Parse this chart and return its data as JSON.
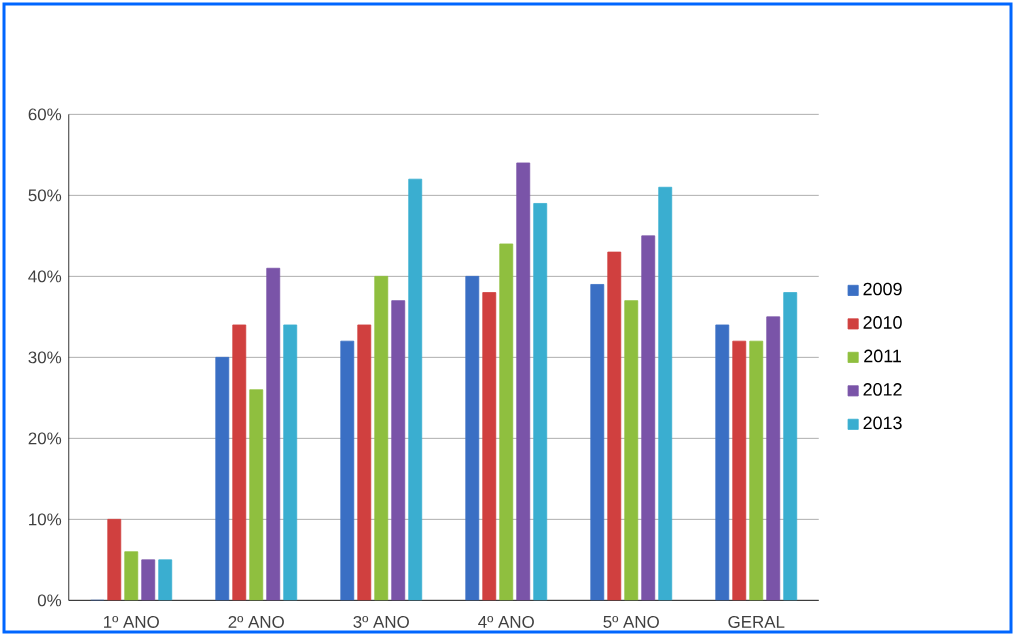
{
  "chart_data": {
    "type": "bar",
    "categories": [
      "1º ANO",
      "2º ANO",
      "3º ANO",
      "4º ANO",
      "5º ANO",
      "GERAL"
    ],
    "series": [
      {
        "name": "2009",
        "color": "#3a6fc4",
        "values": [
          0,
          30,
          32,
          40,
          39,
          34
        ]
      },
      {
        "name": "2010",
        "color": "#d0403f",
        "values": [
          10,
          34,
          34,
          38,
          43,
          32
        ]
      },
      {
        "name": "2011",
        "color": "#8fbf3f",
        "values": [
          6,
          26,
          40,
          44,
          37,
          32
        ]
      },
      {
        "name": "2012",
        "color": "#7a54a8",
        "values": [
          5,
          41,
          37,
          54,
          45,
          35
        ]
      },
      {
        "name": "2013",
        "color": "#3aaed0",
        "values": [
          5,
          34,
          52,
          49,
          51,
          38
        ]
      }
    ],
    "ylim": [
      0,
      60
    ],
    "yticks": [
      {
        "value": 0,
        "label": "0%"
      },
      {
        "value": 10,
        "label": "10%"
      },
      {
        "value": 20,
        "label": "20%"
      },
      {
        "value": 30,
        "label": "30%"
      },
      {
        "value": 40,
        "label": "40%"
      },
      {
        "value": 50,
        "label": "50%"
      },
      {
        "value": 60,
        "label": "60%"
      }
    ],
    "grid": "y",
    "legend": "right"
  }
}
